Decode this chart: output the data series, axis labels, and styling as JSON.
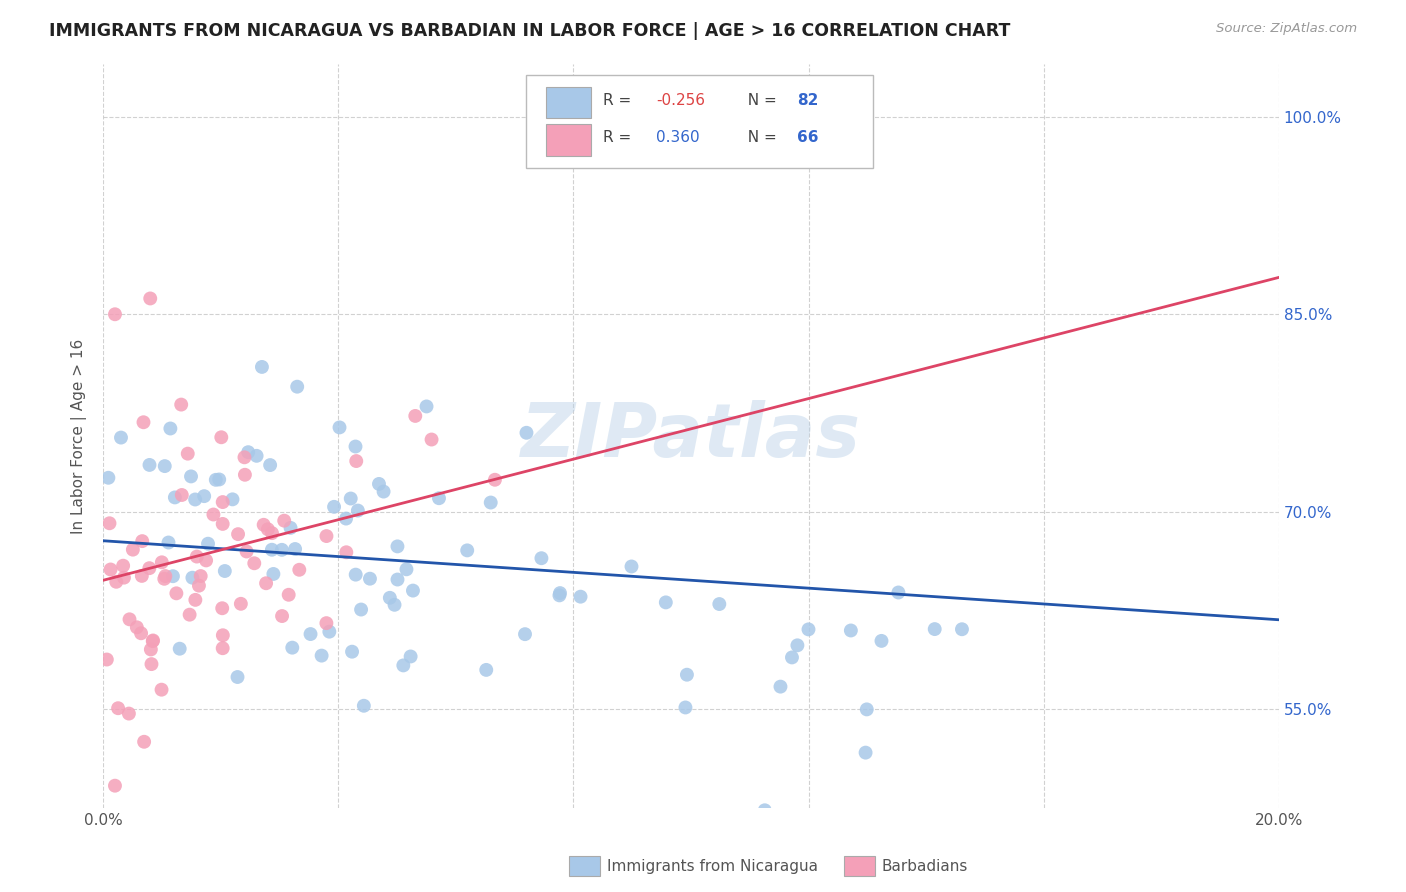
{
  "title": "IMMIGRANTS FROM NICARAGUA VS BARBADIAN IN LABOR FORCE | AGE > 16 CORRELATION CHART",
  "source": "Source: ZipAtlas.com",
  "ylabel": "In Labor Force | Age > 16",
  "x_min": 0.0,
  "x_max": 0.2,
  "y_min": 0.475,
  "y_max": 1.04,
  "y_ticks": [
    0.55,
    0.7,
    0.85,
    1.0
  ],
  "y_tick_labels": [
    "55.0%",
    "70.0%",
    "85.0%",
    "100.0%"
  ],
  "blue_color": "#a8c8e8",
  "pink_color": "#f4a0b8",
  "blue_line_color": "#2255aa",
  "pink_line_color": "#dd4466",
  "legend_label_blue": "Immigrants from Nicaragua",
  "legend_label_pink": "Barbadians",
  "watermark": "ZIPatlas",
  "background_color": "#ffffff",
  "grid_color": "#cccccc",
  "title_color": "#222222",
  "axis_label_color": "#555555",
  "right_tick_color": "#3366cc",
  "blue_R": -0.256,
  "blue_N": 82,
  "pink_R": 0.36,
  "pink_N": 66,
  "blue_line_y0": 0.678,
  "blue_line_y1": 0.618,
  "pink_line_y0": 0.648,
  "pink_line_y1": 0.878
}
